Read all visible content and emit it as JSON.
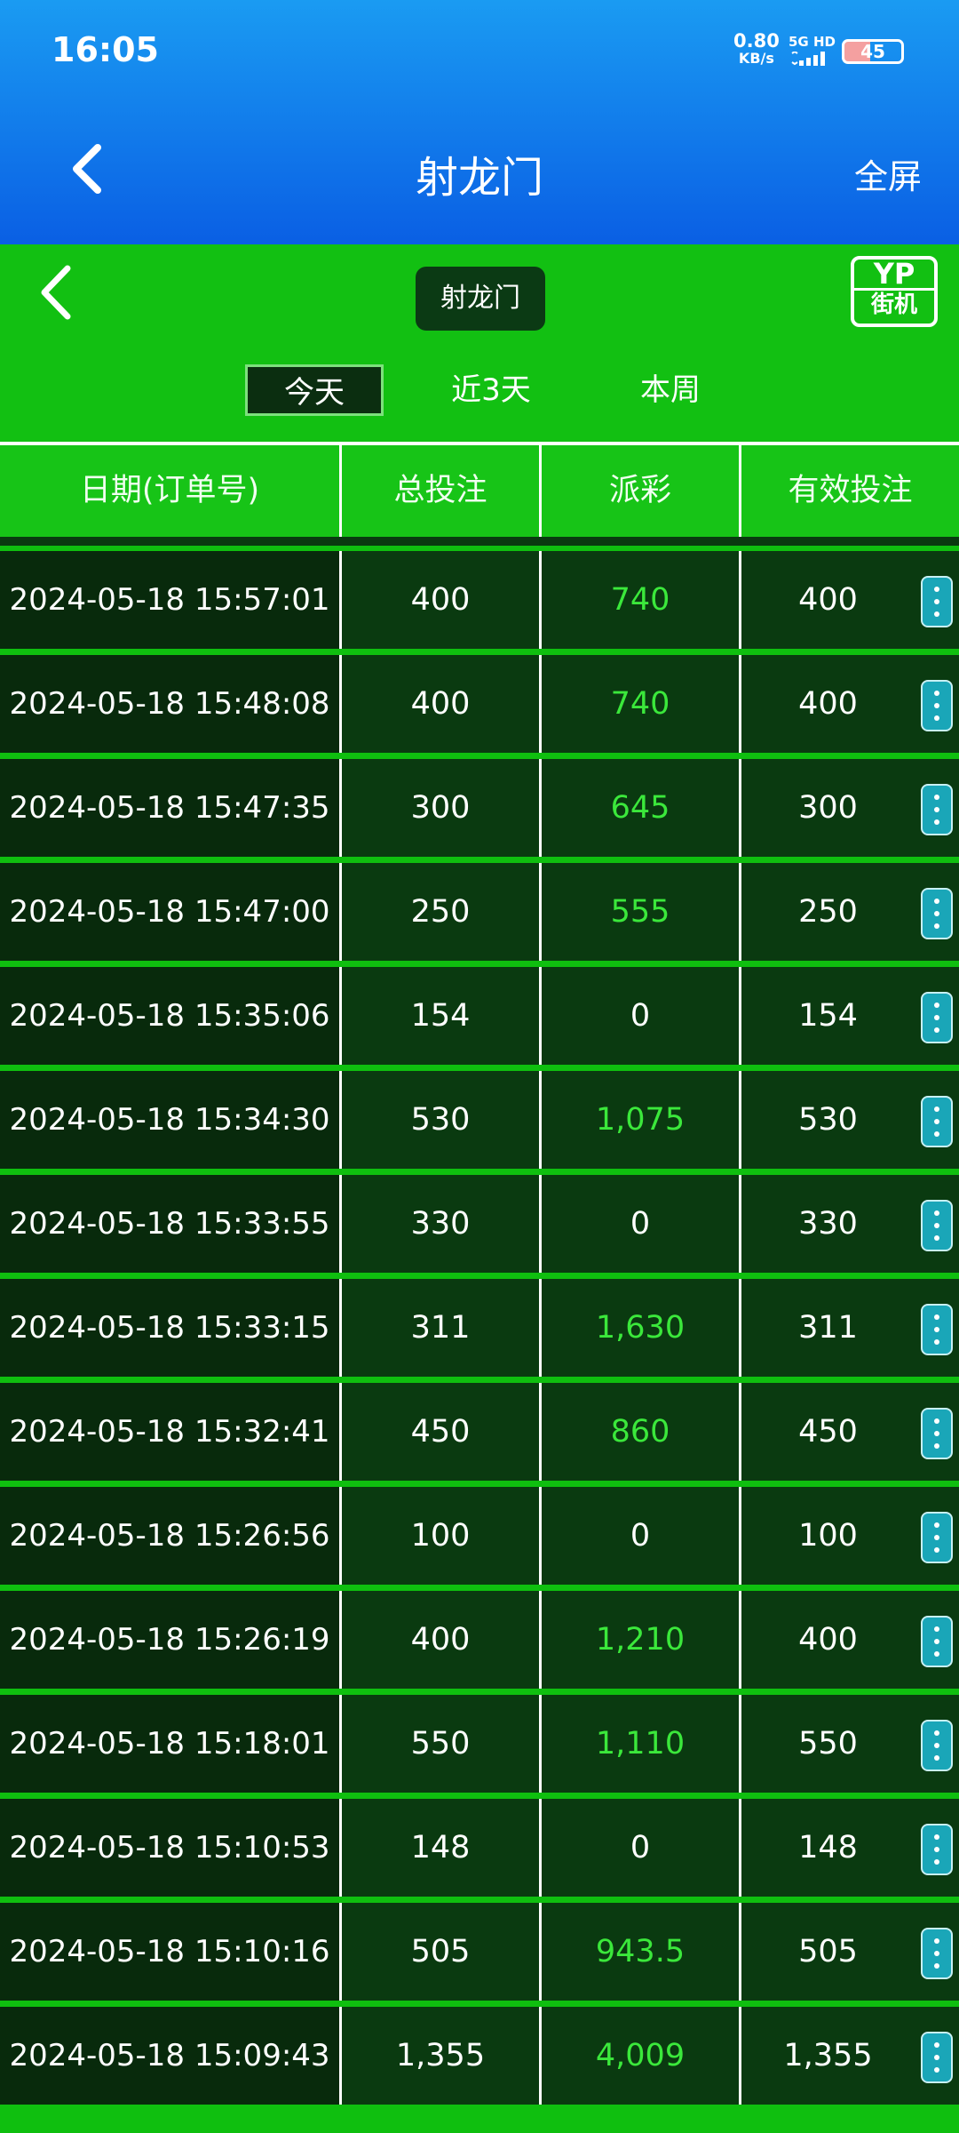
{
  "status_bar": {
    "time": "16:05",
    "speed": "0.80",
    "speed_unit": "KB/s",
    "network": "5G HD",
    "battery": "45"
  },
  "header": {
    "title": "射龙门",
    "action": "全屏"
  },
  "game": {
    "title": "射龙门",
    "badge_top": "YP",
    "badge_bottom": "街机",
    "tabs": [
      "今天",
      "近3天",
      "本周"
    ]
  },
  "table": {
    "columns": [
      "日期(订单号)",
      "总投注",
      "派彩",
      "有效投注"
    ],
    "rows": [
      [
        "2024-05-18 15:57:01",
        "400",
        "740",
        "400"
      ],
      [
        "2024-05-18 15:48:08",
        "400",
        "740",
        "400"
      ],
      [
        "2024-05-18 15:47:35",
        "300",
        "645",
        "300"
      ],
      [
        "2024-05-18 15:47:00",
        "250",
        "555",
        "250"
      ],
      [
        "2024-05-18 15:35:06",
        "154",
        "0",
        "154"
      ],
      [
        "2024-05-18 15:34:30",
        "530",
        "1,075",
        "530"
      ],
      [
        "2024-05-18 15:33:55",
        "330",
        "0",
        "330"
      ],
      [
        "2024-05-18 15:33:15",
        "311",
        "1,630",
        "311"
      ],
      [
        "2024-05-18 15:32:41",
        "450",
        "860",
        "450"
      ],
      [
        "2024-05-18 15:26:56",
        "100",
        "0",
        "100"
      ],
      [
        "2024-05-18 15:26:19",
        "400",
        "1,210",
        "400"
      ],
      [
        "2024-05-18 15:18:01",
        "550",
        "1,110",
        "550"
      ],
      [
        "2024-05-18 15:10:53",
        "148",
        "0",
        "148"
      ],
      [
        "2024-05-18 15:10:16",
        "505",
        "943.5",
        "505"
      ],
      [
        "2024-05-18 15:09:43",
        "1,355",
        "4,009",
        "1,355"
      ]
    ]
  }
}
